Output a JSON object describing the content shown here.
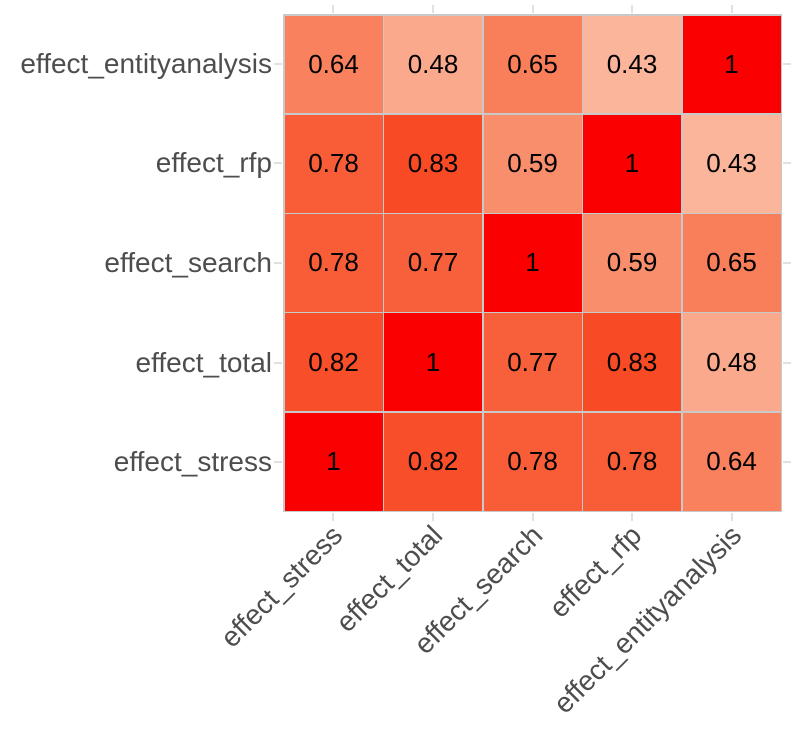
{
  "chart_data": {
    "type": "heatmap",
    "title": "",
    "xlabel": "",
    "ylabel": "",
    "legend": "none",
    "x_categories": [
      "effect_stress",
      "effect_total",
      "effect_search",
      "effect_rfp",
      "effect_entityanalysis"
    ],
    "y_categories": [
      "effect_entityanalysis",
      "effect_rfp",
      "effect_search",
      "effect_total",
      "effect_stress"
    ],
    "values": [
      [
        0.64,
        0.48,
        0.65,
        0.43,
        1
      ],
      [
        0.78,
        0.83,
        0.59,
        1,
        0.43
      ],
      [
        0.78,
        0.77,
        1,
        0.59,
        0.65
      ],
      [
        0.82,
        1,
        0.77,
        0.83,
        0.48
      ],
      [
        1,
        0.82,
        0.78,
        0.78,
        0.64
      ]
    ],
    "labels": [
      [
        "0.64",
        "0.48",
        "0.65",
        "0.43",
        "1"
      ],
      [
        "0.78",
        "0.83",
        "0.59",
        "1",
        "0.43"
      ],
      [
        "0.78",
        "0.77",
        "1",
        "0.59",
        "0.65"
      ],
      [
        "0.82",
        "1",
        "0.77",
        "0.83",
        "0.48"
      ],
      [
        "1",
        "0.82",
        "0.78",
        "0.78",
        "0.64"
      ]
    ],
    "value_colors": {
      "1": "#fb0000",
      "0.83": "#f94a26",
      "0.82": "#f94e2a",
      "0.78": "#f85d38",
      "0.77": "#f8603c",
      "0.65": "#f97f5a",
      "0.64": "#f9815d",
      "0.59": "#f98e6c",
      "0.48": "#faa98c",
      "0.43": "#fbb59b"
    },
    "color_scale": {
      "low_value": 0.43,
      "high_value": 1,
      "low_color": "#fbb59b",
      "high_color": "#fb0000"
    },
    "grid_line_color": "#c9c9c9",
    "tick_color": "#e1e1e1",
    "axis_text_color": "#4d4d4d",
    "cell_text_color": "#000000",
    "background_color": "#ffffff"
  }
}
